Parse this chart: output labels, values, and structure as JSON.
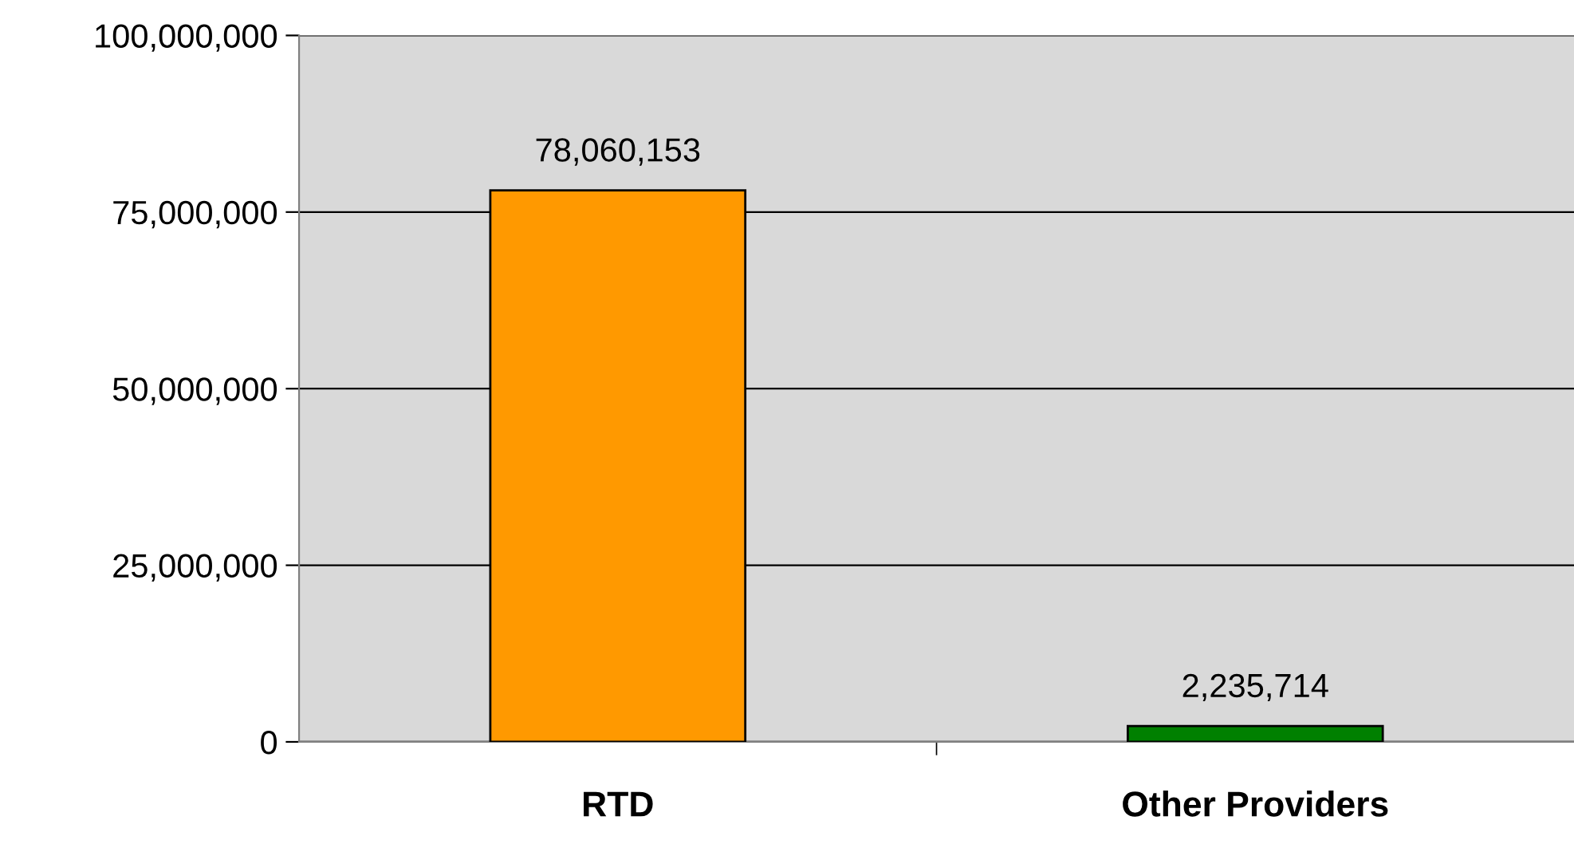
{
  "chart_data": {
    "type": "bar",
    "categories": [
      "RTD",
      "Other Providers"
    ],
    "values": [
      78060153,
      2235714
    ],
    "colors": [
      "#ff9900",
      "#008000"
    ],
    "value_labels": [
      "78,060,153",
      "2,235,714"
    ],
    "ylim": [
      0,
      100000000
    ],
    "yticks": [
      {
        "value": 0,
        "label": "0"
      },
      {
        "value": 25000000,
        "label": "25,000,000"
      },
      {
        "value": 50000000,
        "label": "50,000,000"
      },
      {
        "value": 75000000,
        "label": "75,000,000"
      },
      {
        "value": 100000000,
        "label": "100,000,000"
      }
    ],
    "grid": "y",
    "legend": false
  }
}
